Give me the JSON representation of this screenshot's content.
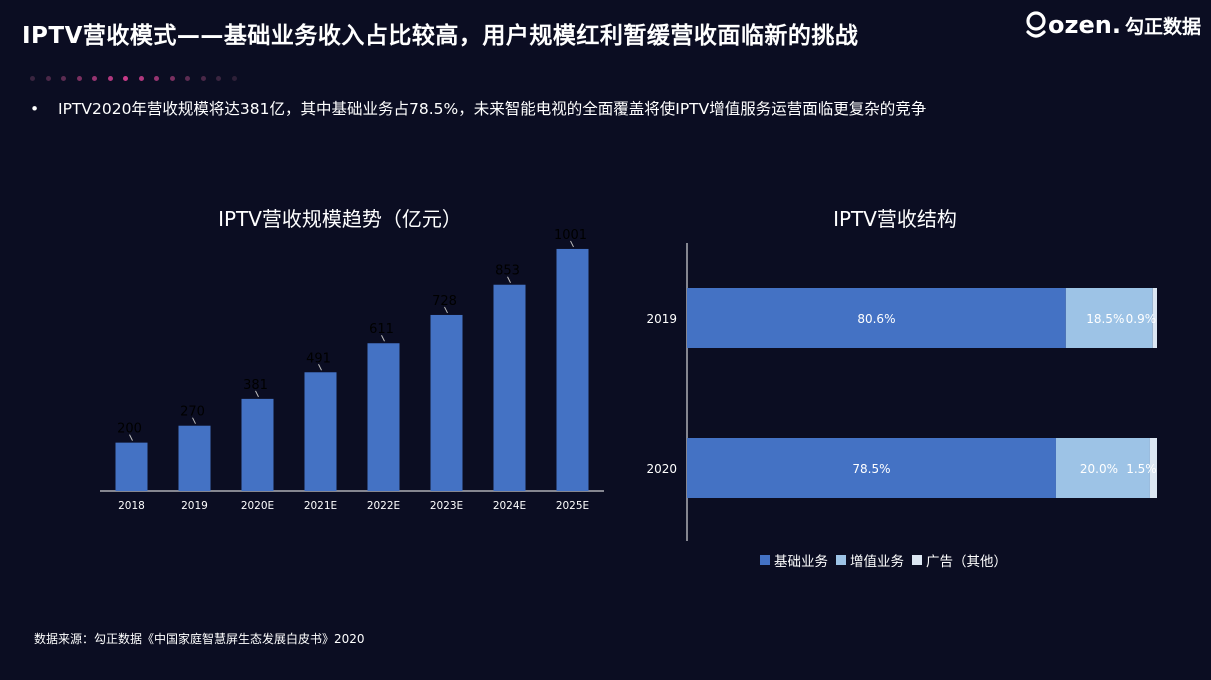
{
  "header": {
    "title": "IPTV营收模式——基础业务收入占比较高，用户规模红利暂缓营收面临新的挑战",
    "logo_text": "ozen.",
    "logo_cn": "勾正数据"
  },
  "decor": {
    "dot_colors": [
      "#3a2540",
      "#4a2848",
      "#5c2c52",
      "#7a3060",
      "#963470",
      "#b0387e",
      "#c83a88",
      "#b0387e",
      "#963470",
      "#7a3060",
      "#5c2c52",
      "#4a2848",
      "#3a2540",
      "#2e2038"
    ]
  },
  "bullet": {
    "marker": "•",
    "text": "IPTV2020年营收规模将达381亿，其中基础业务占78.5%，未来智能电视的全面覆盖将使IPTV增值服务运营面临更复杂的竞争"
  },
  "footer": {
    "source": "数据来源：勾正数据《中国家庭智慧屏生态发展白皮书》2020"
  },
  "chart_data": [
    {
      "type": "bar",
      "title": "IPTV营收规模趋势（亿元）",
      "categories": [
        "2018",
        "2019",
        "2020E",
        "2021E",
        "2022E",
        "2023E",
        "2024E",
        "2025E"
      ],
      "values": [
        200,
        270,
        381,
        491,
        611,
        728,
        853,
        1001
      ],
      "data_labels": [
        "200",
        "270",
        "381",
        "491",
        "611",
        "728",
        "853",
        "1001"
      ],
      "color": "#4472c4",
      "xlabel": "",
      "ylabel": "",
      "ylim": [
        0,
        1100
      ],
      "grid": false
    },
    {
      "type": "bar",
      "orientation": "horizontal",
      "stacked": true,
      "title": "IPTV营收结构",
      "categories": [
        "2019",
        "2020"
      ],
      "series": [
        {
          "name": "基础业务",
          "values": [
            80.6,
            78.5
          ],
          "labels": [
            "80.6%",
            "78.5%"
          ],
          "color": "#4472c4"
        },
        {
          "name": "增值业务",
          "values": [
            18.5,
            20.0
          ],
          "labels": [
            "18.5%",
            "20.0%"
          ],
          "color": "#9dc3e6"
        },
        {
          "name": "广告（其他）",
          "values": [
            0.9,
            1.5
          ],
          "labels": [
            "0.9%",
            "1.5%"
          ],
          "color": "#dce6f2"
        }
      ],
      "xlim": [
        0,
        100
      ],
      "legend": "bottom",
      "grid": false
    }
  ]
}
